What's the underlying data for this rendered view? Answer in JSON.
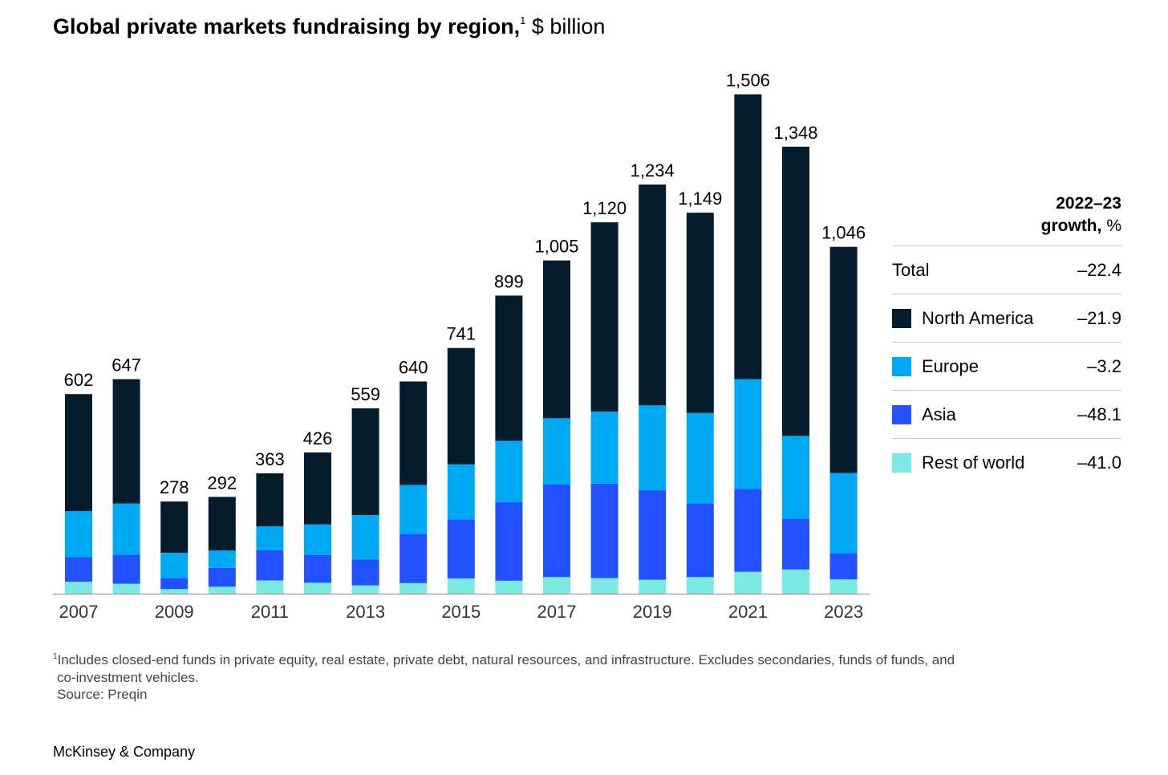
{
  "title": {
    "main": "Global private markets fundraising by region,",
    "footnote_marker": "1",
    "unit": " $ billion"
  },
  "colors": {
    "north_america": "#051c2c",
    "europe": "#00a9f4",
    "asia": "#2251ff",
    "rest_of_world": "#7beae2",
    "axis": "#999999"
  },
  "chart_data": {
    "type": "bar",
    "stacked": true,
    "categories": [
      "2007",
      "2008",
      "2009",
      "2010",
      "2011",
      "2012",
      "2013",
      "2014",
      "2015",
      "2016",
      "2017",
      "2018",
      "2019",
      "2020",
      "2021",
      "2022",
      "2023"
    ],
    "x_tick_labels": [
      "2007",
      "2009",
      "2011",
      "2013",
      "2015",
      "2017",
      "2019",
      "2021",
      "2023"
    ],
    "totals": [
      602,
      647,
      278,
      292,
      363,
      426,
      559,
      640,
      741,
      899,
      1005,
      1120,
      1234,
      1149,
      1506,
      1348,
      1046
    ],
    "total_labels": [
      "602",
      "647",
      "278",
      "292",
      "363",
      "426",
      "559",
      "640",
      "741",
      "899",
      "1,005",
      "1,120",
      "1,234",
      "1,149",
      "1,506",
      "1,348",
      "1,046"
    ],
    "series": [
      {
        "name": "Rest of world",
        "values": [
          36,
          30,
          14,
          21,
          40,
          33,
          25,
          32,
          46,
          39,
          50,
          47,
          42,
          50,
          66,
          73,
          43
        ]
      },
      {
        "name": "Asia",
        "values": [
          74,
          88,
          33,
          57,
          91,
          84,
          78,
          148,
          178,
          237,
          279,
          285,
          270,
          222,
          250,
          153,
          79
        ]
      },
      {
        "name": "Europe",
        "values": [
          139,
          154,
          76,
          52,
          72,
          92,
          134,
          148,
          166,
          185,
          200,
          217,
          256,
          273,
          331,
          250,
          242
        ]
      },
      {
        "name": "North America",
        "values": [
          353,
          375,
          155,
          162,
          160,
          217,
          322,
          312,
          351,
          438,
          476,
          571,
          666,
          604,
          859,
          872,
          682
        ]
      }
    ],
    "ylim": [
      0,
      1600
    ]
  },
  "growth_table": {
    "header_line1": "2022–23",
    "header_line2_bold": "growth,",
    "header_line2_unit": " %",
    "rows": [
      {
        "label": "Total",
        "value": "–22.4",
        "color": null
      },
      {
        "label": "North America",
        "value": "–21.9",
        "color": "#051c2c"
      },
      {
        "label": "Europe",
        "value": "–3.2",
        "color": "#00a9f4"
      },
      {
        "label": "Asia",
        "value": "–48.1",
        "color": "#2251ff"
      },
      {
        "label": "Rest of world",
        "value": "–41.0",
        "color": "#7beae2"
      }
    ]
  },
  "footnote": {
    "marker": "1",
    "line1": "Includes closed-end funds in private equity, real estate, private debt, natural resources, and infrastructure. Excludes secondaries, funds of funds, and",
    "line2": "co-investment vehicles.",
    "source": "Source: Preqin"
  },
  "brand": "McKinsey & Company"
}
